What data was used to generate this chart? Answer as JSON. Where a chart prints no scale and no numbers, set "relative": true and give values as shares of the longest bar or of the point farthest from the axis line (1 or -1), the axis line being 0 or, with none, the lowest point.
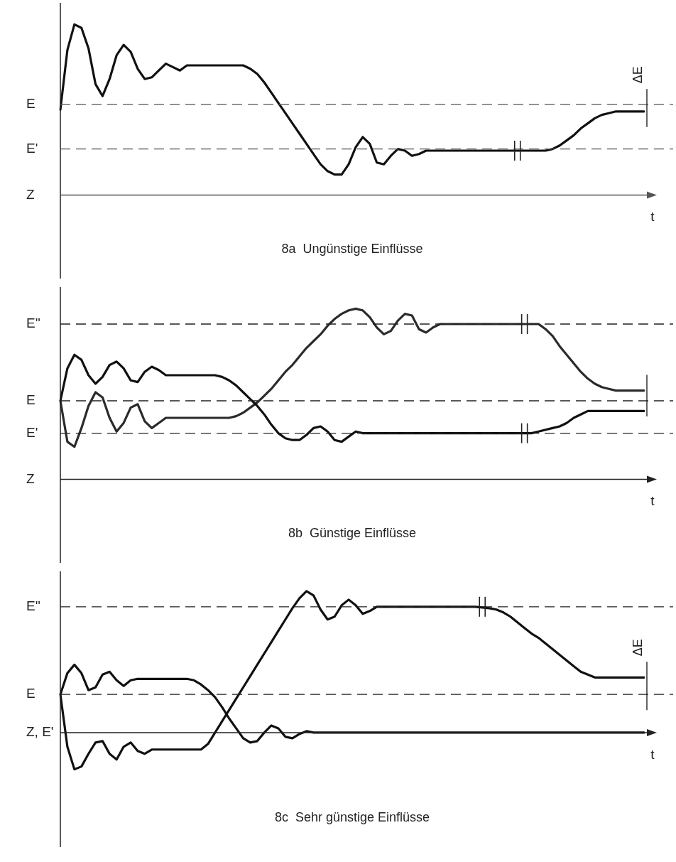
{
  "chart_data": [
    {
      "type": "line",
      "title": "8a  Ungünstige Einflüsse",
      "xlabel": "t",
      "relative": true,
      "legend": false,
      "grid": false,
      "marker": "none",
      "line_style": "solid",
      "tick_labels": false,
      "categories": [
        null,
        null,
        null,
        null,
        null,
        null,
        null,
        null,
        null,
        null,
        null,
        null,
        null,
        null,
        null,
        null,
        null,
        null,
        null,
        null,
        null,
        null,
        null,
        null,
        null,
        null,
        null,
        null,
        null,
        null,
        null,
        null,
        null,
        null,
        null,
        null,
        null,
        null,
        null,
        null,
        null,
        null,
        null,
        null,
        null,
        null,
        null,
        null,
        null,
        null,
        null,
        null,
        null,
        null,
        null,
        null,
        null,
        null,
        null,
        null,
        null,
        null,
        null,
        null,
        null,
        null,
        null,
        null,
        null,
        null,
        null,
        null,
        null,
        null,
        null,
        null,
        null,
        null,
        null,
        null,
        null,
        null,
        null,
        null
      ],
      "series": [
        {
          "color": "#111111",
          "values": [
            0.5,
            0.85,
            1.0,
            0.98,
            0.86,
            0.65,
            0.58,
            0.68,
            0.82,
            0.88,
            0.84,
            0.74,
            0.68,
            0.69,
            0.73,
            0.77,
            0.75,
            0.73,
            0.76,
            0.76,
            0.76,
            0.76,
            0.76,
            0.76,
            0.76,
            0.76,
            0.76,
            0.74,
            0.71,
            0.66,
            0.6,
            0.54,
            0.48,
            0.42,
            0.36,
            0.3,
            0.24,
            0.18,
            0.14,
            0.12,
            0.12,
            0.18,
            0.28,
            0.34,
            0.3,
            0.19,
            0.18,
            0.23,
            0.27,
            0.26,
            0.23,
            0.24,
            0.26,
            0.26,
            0.26,
            0.26,
            0.26,
            0.26,
            0.26,
            0.26,
            0.26,
            0.26,
            0.26,
            0.26,
            0.26,
            null,
            0.26,
            0.26,
            0.26,
            0.26,
            0.27,
            0.29,
            0.32,
            0.35,
            0.39,
            0.42,
            0.45,
            0.47,
            0.48,
            0.49,
            0.49,
            0.49,
            0.49,
            0.49
          ]
        }
      ],
      "ref_lines": [
        {
          "axis": "y",
          "value": 0.53,
          "label": "E",
          "line_style": "dashed",
          "color": "#555555"
        },
        {
          "axis": "y",
          "value": 0.27,
          "label": "E'",
          "line_style": "dashed",
          "color": "#555555"
        },
        {
          "axis": "y",
          "value": 0,
          "label": "Z",
          "line_style": "solid",
          "color": "#555555"
        }
      ],
      "annotations": [
        "ΔE"
      ]
    },
    {
      "type": "line",
      "title": "8b  Günstige Einflüsse",
      "xlabel": "t",
      "relative": true,
      "legend": false,
      "grid": false,
      "marker": "none",
      "line_style": "solid",
      "tick_labels": false,
      "categories": [
        null,
        null,
        null,
        null,
        null,
        null,
        null,
        null,
        null,
        null,
        null,
        null,
        null,
        null,
        null,
        null,
        null,
        null,
        null,
        null,
        null,
        null,
        null,
        null,
        null,
        null,
        null,
        null,
        null,
        null,
        null,
        null,
        null,
        null,
        null,
        null,
        null,
        null,
        null,
        null,
        null,
        null,
        null,
        null,
        null,
        null,
        null,
        null,
        null,
        null,
        null,
        null,
        null,
        null,
        null,
        null,
        null,
        null,
        null,
        null,
        null,
        null,
        null,
        null,
        null,
        null,
        null,
        null,
        null,
        null,
        null,
        null,
        null,
        null,
        null,
        null,
        null,
        null,
        null,
        null,
        null,
        null,
        null,
        null
      ],
      "series": [
        {
          "color": "#111111",
          "values": [
            0.46,
            0.65,
            0.73,
            0.7,
            0.61,
            0.56,
            0.6,
            0.67,
            0.69,
            0.65,
            0.58,
            0.57,
            0.63,
            0.66,
            0.64,
            0.61,
            0.61,
            0.61,
            0.61,
            0.61,
            0.61,
            0.61,
            0.61,
            0.6,
            0.58,
            0.55,
            0.51,
            0.47,
            0.43,
            0.38,
            0.32,
            0.27,
            0.24,
            0.23,
            0.23,
            0.26,
            0.3,
            0.31,
            0.28,
            0.23,
            0.22,
            0.25,
            0.28,
            0.27,
            0.27,
            0.27,
            0.27,
            0.27,
            0.27,
            0.27,
            0.27,
            0.27,
            0.27,
            0.27,
            0.27,
            0.27,
            0.27,
            0.27,
            0.27,
            0.27,
            0.27,
            0.27,
            0.27,
            0.27,
            0.27,
            0.27,
            null,
            0.27,
            0.28,
            0.29,
            0.3,
            0.31,
            0.33,
            0.36,
            0.38,
            0.4,
            0.4,
            0.4,
            0.4,
            0.4,
            0.4,
            0.4,
            0.4,
            0.4
          ]
        },
        {
          "color": "#2b2b2b",
          "values": [
            0.46,
            0.22,
            0.19,
            0.3,
            0.43,
            0.51,
            0.48,
            0.36,
            0.28,
            0.33,
            0.42,
            0.44,
            0.34,
            0.3,
            0.33,
            0.36,
            0.36,
            0.36,
            0.36,
            0.36,
            0.36,
            0.36,
            0.36,
            0.36,
            0.36,
            0.37,
            0.39,
            0.42,
            0.45,
            0.49,
            0.53,
            0.58,
            0.63,
            0.67,
            0.72,
            0.77,
            0.81,
            0.85,
            0.9,
            0.94,
            0.97,
            0.99,
            1.0,
            0.99,
            0.95,
            0.89,
            0.85,
            0.87,
            0.93,
            0.97,
            0.96,
            0.88,
            0.86,
            0.89,
            0.91,
            0.91,
            0.91,
            0.91,
            0.91,
            0.91,
            0.91,
            0.91,
            0.91,
            0.91,
            0.91,
            0.91,
            null,
            0.91,
            0.91,
            0.88,
            0.84,
            0.78,
            0.73,
            0.68,
            0.63,
            0.59,
            0.56,
            0.54,
            0.53,
            0.52,
            0.52,
            0.52,
            0.52,
            0.52
          ]
        }
      ],
      "ref_lines": [
        {
          "axis": "y",
          "value": 0.91,
          "label": "E''",
          "line_style": "dashed"
        },
        {
          "axis": "y",
          "value": 0.46,
          "label": "E",
          "line_style": "dashed"
        },
        {
          "axis": "y",
          "value": 0.27,
          "label": "E'",
          "line_style": "dashed"
        },
        {
          "axis": "y",
          "value": 0,
          "label": "Z",
          "line_style": "solid"
        }
      ]
    },
    {
      "type": "line",
      "title": "8c  Sehr günstige Einflüsse",
      "xlabel": "t",
      "relative": true,
      "legend": false,
      "grid": false,
      "marker": "none",
      "line_style": "solid",
      "tick_labels": false,
      "categories": [
        null,
        null,
        null,
        null,
        null,
        null,
        null,
        null,
        null,
        null,
        null,
        null,
        null,
        null,
        null,
        null,
        null,
        null,
        null,
        null,
        null,
        null,
        null,
        null,
        null,
        null,
        null,
        null,
        null,
        null,
        null,
        null,
        null,
        null,
        null,
        null,
        null,
        null,
        null,
        null,
        null,
        null,
        null,
        null,
        null,
        null,
        null,
        null,
        null,
        null,
        null,
        null,
        null,
        null,
        null,
        null,
        null,
        null,
        null,
        null,
        null,
        null,
        null,
        null,
        null,
        null,
        null,
        null,
        null,
        null,
        null,
        null,
        null,
        null,
        null,
        null,
        null,
        null,
        null,
        null,
        null,
        null,
        null,
        null
      ],
      "series": [
        {
          "color": "#111111",
          "values": [
            0.27,
            0.42,
            0.48,
            0.42,
            0.3,
            0.32,
            0.41,
            0.43,
            0.37,
            0.33,
            0.37,
            0.38,
            0.38,
            0.38,
            0.38,
            0.38,
            0.38,
            0.38,
            0.38,
            0.37,
            0.34,
            0.3,
            0.25,
            0.18,
            0.1,
            0.03,
            -0.04,
            -0.07,
            -0.06,
            0.0,
            0.05,
            0.03,
            -0.03,
            -0.04,
            -0.01,
            0.01,
            0,
            0,
            0,
            0,
            0,
            0,
            0,
            0,
            0,
            0,
            0,
            0,
            0,
            0,
            0,
            0,
            0,
            0,
            0,
            0,
            0,
            0,
            0,
            0,
            0,
            0,
            0,
            0,
            0,
            0,
            0,
            0,
            0,
            0,
            0,
            0,
            0,
            0,
            0,
            0,
            0,
            0,
            0,
            0,
            0,
            0,
            0,
            0
          ]
        },
        {
          "color": "#111111",
          "values": [
            0.27,
            -0.1,
            -0.26,
            -0.24,
            -0.15,
            -0.07,
            -0.06,
            -0.15,
            -0.19,
            -0.1,
            -0.07,
            -0.13,
            -0.15,
            -0.12,
            -0.12,
            -0.12,
            -0.12,
            -0.12,
            -0.12,
            -0.12,
            -0.12,
            -0.08,
            0.0,
            0.08,
            0.16,
            0.24,
            0.32,
            0.4,
            0.48,
            0.56,
            0.64,
            0.72,
            0.8,
            0.88,
            0.95,
            1.0,
            0.97,
            0.87,
            0.8,
            0.82,
            0.9,
            0.94,
            0.9,
            0.84,
            0.86,
            0.89,
            0.89,
            0.89,
            0.89,
            0.89,
            0.89,
            0.89,
            0.89,
            0.89,
            0.89,
            0.89,
            0.89,
            0.89,
            0.89,
            0.89,
            null,
            0.88,
            0.87,
            0.85,
            0.82,
            0.78,
            0.74,
            0.7,
            0.67,
            0.63,
            0.59,
            0.55,
            0.51,
            0.47,
            0.43,
            0.41,
            0.39,
            0.39,
            0.39,
            0.39,
            0.39,
            0.39,
            0.39,
            0.39
          ]
        }
      ],
      "ref_lines": [
        {
          "axis": "y",
          "value": 0.89,
          "label": "E''",
          "line_style": "dashed"
        },
        {
          "axis": "y",
          "value": 0.27,
          "label": "E",
          "line_style": "dashed"
        },
        {
          "axis": "y",
          "value": 0,
          "label": "Z, E'",
          "line_style": "solid"
        }
      ],
      "annotations": [
        "ΔE"
      ]
    }
  ]
}
